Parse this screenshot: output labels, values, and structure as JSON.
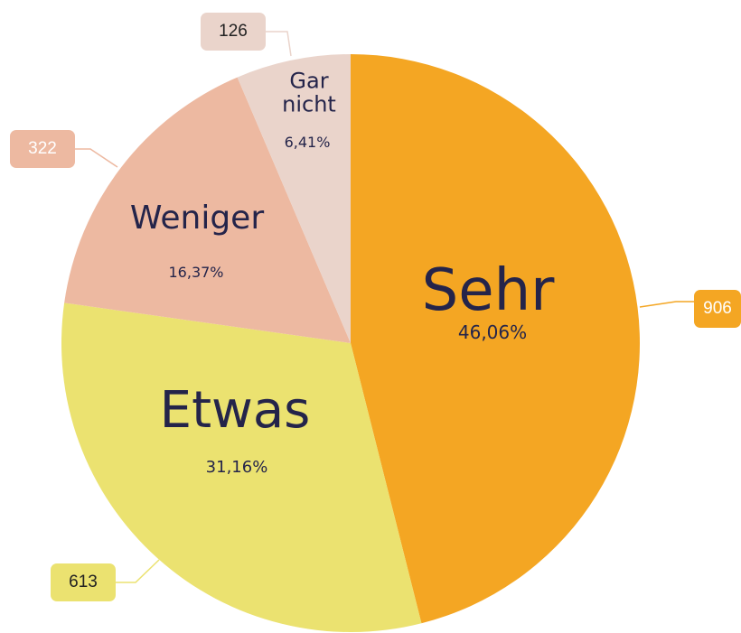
{
  "chart_data": {
    "type": "pie",
    "categories": [
      "Sehr",
      "Etwas",
      "Weniger",
      "Gar nicht"
    ],
    "values": [
      906,
      613,
      322,
      126
    ],
    "percent_labels": [
      "46,06%",
      "31,16%",
      "16,37%",
      "6,41%"
    ],
    "colors": [
      "#f4a623",
      "#ebe270",
      "#edb9a1",
      "#ead4cb"
    ]
  }
}
